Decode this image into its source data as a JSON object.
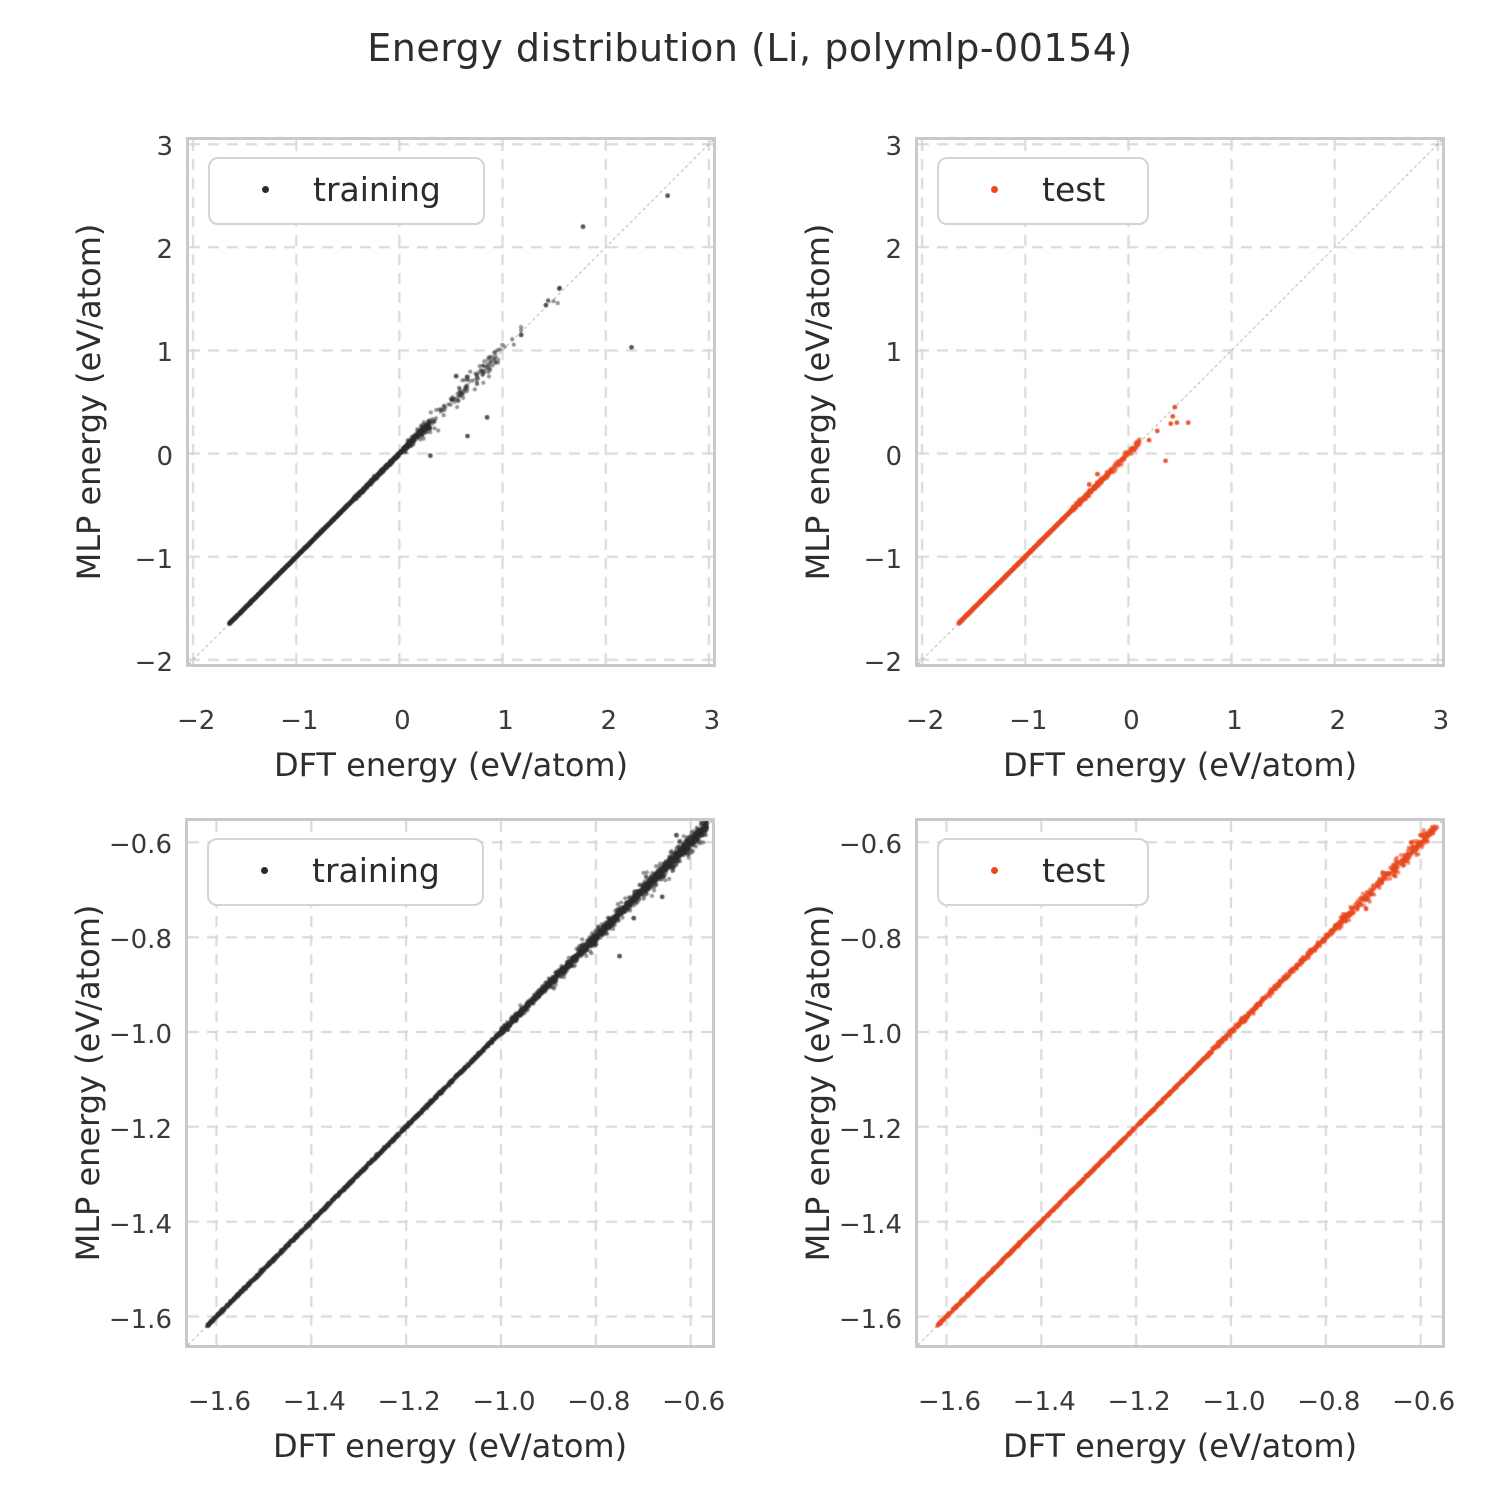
{
  "title": "Energy distribution (Li, polymlp-00154)",
  "style": {
    "grid_color": "#d6d6d6",
    "spine_color": "#c9c9c9",
    "diagonal_color": "#8f8f8f",
    "text_color": "#2e2e2e",
    "tick_text_color": "#3a3a3a",
    "training_color": "#2b2b2b",
    "test_color": "#e8491e"
  },
  "chart_data": {
    "type": "scatter",
    "figure_title": "Energy distribution (Li, polymlp-00154)",
    "grid": true,
    "legend_position": "upper left",
    "panels": [
      {
        "id": "training-full",
        "legend": "training",
        "color": "#2b2b2b",
        "point_alpha": 0.5,
        "xlabel": "DFT energy (eV/atom)",
        "ylabel": "MLP energy (eV/atom)",
        "xlim": [
          -2.04,
          3.04
        ],
        "ylim": [
          -2.04,
          3.04
        ],
        "ticks": {
          "x": [
            -2,
            -1,
            0,
            1,
            2,
            3
          ],
          "x_labels": [
            "−2",
            "−1",
            "0",
            "1",
            "2",
            "3"
          ],
          "y": [
            3,
            2,
            1,
            0,
            -1,
            -2
          ],
          "y_labels": [
            "3",
            "2",
            "1",
            "0",
            "−1",
            "−2"
          ]
        },
        "identity_line": true,
        "seed": 11,
        "dense_segments": [
          {
            "from": -1.65,
            "to": -0.45,
            "n": 1500,
            "jitter": 0.0035
          },
          {
            "from": -0.45,
            "to": 0.1,
            "n": 700,
            "jitter": 0.008
          },
          {
            "from": 0.05,
            "to": 0.3,
            "n": 160,
            "jitter": 0.022
          },
          {
            "from": 0.2,
            "to": 1.0,
            "n": 130,
            "jitter": 0.055
          },
          {
            "from": 1.0,
            "to": 1.6,
            "n": 10,
            "jitter": 0.045
          }
        ],
        "outliers": [
          [
            2.6,
            2.5
          ],
          [
            2.25,
            1.03
          ],
          [
            1.78,
            2.2
          ],
          [
            1.55,
            1.6
          ],
          [
            1.42,
            1.44
          ],
          [
            1.18,
            1.15
          ],
          [
            0.66,
            0.17
          ],
          [
            0.85,
            0.35
          ],
          [
            0.3,
            -0.02
          ],
          [
            0.55,
            0.75
          ]
        ]
      },
      {
        "id": "test-full",
        "legend": "test",
        "color": "#e8491e",
        "point_alpha": 0.62,
        "xlabel": "DFT energy (eV/atom)",
        "ylabel": "MLP energy (eV/atom)",
        "xlim": [
          -2.04,
          3.04
        ],
        "ylim": [
          -2.04,
          3.04
        ],
        "ticks": {
          "x": [
            -2,
            -1,
            0,
            1,
            2,
            3
          ],
          "x_labels": [
            "−2",
            "−1",
            "0",
            "1",
            "2",
            "3"
          ],
          "y": [
            3,
            2,
            1,
            0,
            -1,
            -2
          ],
          "y_labels": [
            "3",
            "2",
            "1",
            "0",
            "−1",
            "−2"
          ]
        },
        "identity_line": true,
        "seed": 22,
        "dense_segments": [
          {
            "from": -1.65,
            "to": -0.55,
            "n": 1400,
            "jitter": 0.003
          },
          {
            "from": -0.55,
            "to": -0.15,
            "n": 260,
            "jitter": 0.012
          },
          {
            "from": -0.15,
            "to": 0.12,
            "n": 70,
            "jitter": 0.018
          }
        ],
        "outliers": [
          [
            0.45,
            0.45
          ],
          [
            0.43,
            0.36
          ],
          [
            0.47,
            0.3
          ],
          [
            0.41,
            0.29
          ],
          [
            0.58,
            0.3
          ],
          [
            0.36,
            -0.07
          ],
          [
            0.2,
            0.13
          ],
          [
            0.28,
            0.22
          ],
          [
            -0.3,
            -0.2
          ],
          [
            -0.38,
            -0.3
          ]
        ]
      },
      {
        "id": "training-zoom",
        "legend": "training",
        "color": "#2b2b2b",
        "point_alpha": 0.5,
        "xlabel": "DFT energy (eV/atom)",
        "ylabel": "MLP energy (eV/atom)",
        "xlim": [
          -1.66,
          -0.555
        ],
        "ylim": [
          -1.66,
          -0.555
        ],
        "ticks": {
          "x": [
            -1.6,
            -1.4,
            -1.2,
            -1.0,
            -0.8,
            -0.6
          ],
          "x_labels": [
            "−1.6",
            "−1.4",
            "−1.2",
            "−1.0",
            "−0.8",
            "−0.6"
          ],
          "y": [
            -0.6,
            -0.8,
            -1.0,
            -1.2,
            -1.4,
            -1.6
          ],
          "y_labels": [
            "−0.6",
            "−0.8",
            "−1.0",
            "−1.2",
            "−1.4",
            "−1.6"
          ]
        },
        "identity_line": true,
        "seed": 33,
        "dense_segments": [
          {
            "from": -1.62,
            "to": -1.0,
            "n": 1600,
            "jitter": 0.0015
          },
          {
            "from": -1.0,
            "to": -0.565,
            "n": 1500,
            "jitter": 0.004
          },
          {
            "from": -0.9,
            "to": -0.565,
            "n": 350,
            "jitter": 0.009
          },
          {
            "from": -0.7,
            "to": -0.565,
            "n": 200,
            "jitter": 0.012
          }
        ],
        "outliers": [
          [
            -0.75,
            -0.84
          ],
          [
            -0.72,
            -0.76
          ],
          [
            -0.8,
            -0.815
          ],
          [
            -0.66,
            -0.715
          ],
          [
            -0.63,
            -0.585
          ]
        ]
      },
      {
        "id": "test-zoom",
        "legend": "test",
        "color": "#e8491e",
        "point_alpha": 0.62,
        "xlabel": "DFT energy (eV/atom)",
        "ylabel": "MLP energy (eV/atom)",
        "xlim": [
          -1.66,
          -0.555
        ],
        "ylim": [
          -1.66,
          -0.555
        ],
        "ticks": {
          "x": [
            -1.6,
            -1.4,
            -1.2,
            -1.0,
            -0.8,
            -0.6
          ],
          "x_labels": [
            "−1.6",
            "−1.4",
            "−1.2",
            "−1.0",
            "−0.8",
            "−0.6"
          ],
          "y": [
            -0.6,
            -0.8,
            -1.0,
            -1.2,
            -1.4,
            -1.6
          ],
          "y_labels": [
            "−0.6",
            "−0.8",
            "−1.0",
            "−1.2",
            "−1.4",
            "−1.6"
          ]
        },
        "identity_line": true,
        "seed": 44,
        "dense_segments": [
          {
            "from": -1.62,
            "to": -1.05,
            "n": 1200,
            "jitter": 0.0012
          },
          {
            "from": -1.05,
            "to": -0.75,
            "n": 500,
            "jitter": 0.003
          },
          {
            "from": -0.78,
            "to": -0.565,
            "n": 280,
            "jitter": 0.006
          },
          {
            "from": -0.66,
            "to": -0.58,
            "n": 60,
            "jitter": 0.009
          }
        ],
        "outliers": [
          [
            -0.715,
            -0.74
          ],
          [
            -0.68,
            -0.664
          ],
          [
            -0.6,
            -0.585
          ],
          [
            -0.655,
            -0.67
          ],
          [
            -0.62,
            -0.6
          ]
        ]
      }
    ]
  }
}
